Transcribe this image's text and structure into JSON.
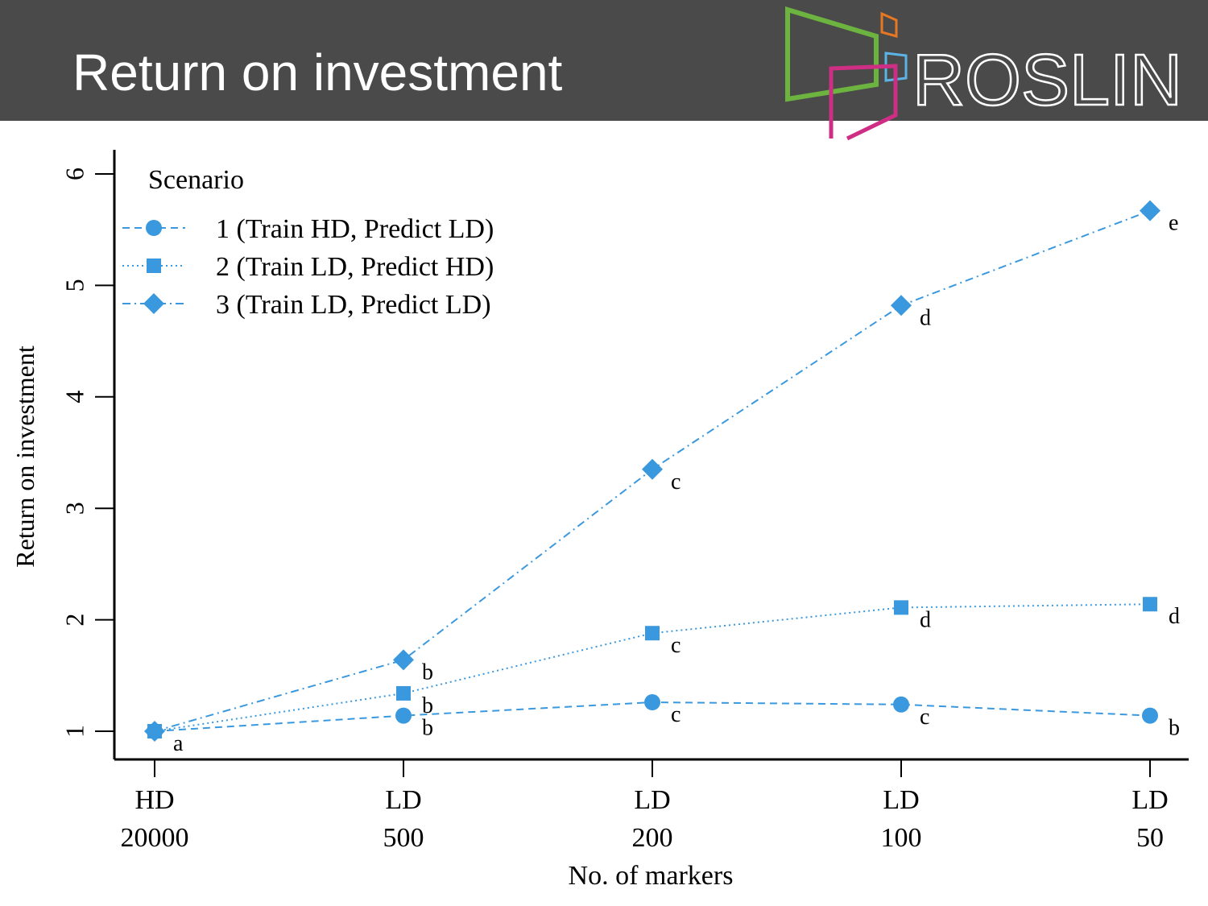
{
  "slide": {
    "title": "Return on investment",
    "logo_text": "ROSLIN",
    "header_bg": "#4a4a4a"
  },
  "logo": {
    "colors": {
      "green": "#6db33f",
      "orange": "#e87722",
      "blue": "#5bb4e5",
      "magenta": "#cf2e85"
    }
  },
  "chart_data": {
    "type": "line",
    "xlabel": "No. of markers",
    "ylabel": "Return on investment",
    "categories": [
      {
        "top": "HD",
        "bottom": "20000"
      },
      {
        "top": "LD",
        "bottom": "500"
      },
      {
        "top": "LD",
        "bottom": "200"
      },
      {
        "top": "LD",
        "bottom": "100"
      },
      {
        "top": "LD",
        "bottom": "50"
      }
    ],
    "ylim": [
      0.75,
      6.2
    ],
    "yticks": [
      1,
      2,
      3,
      4,
      5,
      6
    ],
    "grid": false,
    "legend": {
      "title": "Scenario",
      "position": "top-left"
    },
    "color": "#3a99de",
    "series": [
      {
        "name": "1 (Train HD, Predict LD)",
        "marker": "circle",
        "line": "dashed",
        "values": [
          1.0,
          1.14,
          1.26,
          1.24,
          1.14
        ],
        "labels": [
          "a",
          "b",
          "c",
          "c",
          "b"
        ]
      },
      {
        "name": "2 (Train LD, Predict HD)",
        "marker": "square",
        "line": "dotted",
        "values": [
          1.0,
          1.34,
          1.88,
          2.11,
          2.14
        ],
        "labels": [
          "",
          "b",
          "c",
          "d",
          "d"
        ]
      },
      {
        "name": "3 (Train LD, Predict LD)",
        "marker": "diamond",
        "line": "dashdot",
        "values": [
          1.0,
          1.64,
          3.35,
          4.82,
          5.67
        ],
        "labels": [
          "",
          "b",
          "c",
          "d",
          "e"
        ]
      }
    ]
  }
}
